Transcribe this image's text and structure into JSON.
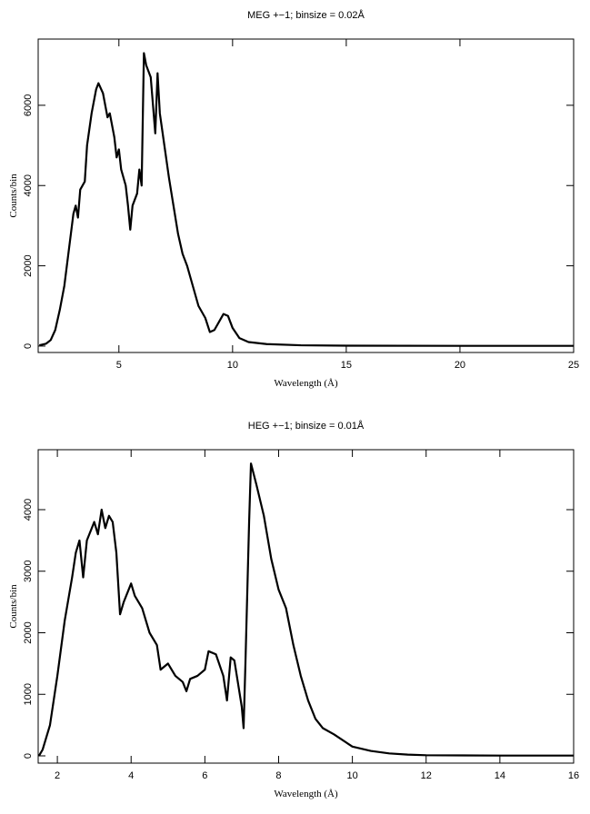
{
  "chart_data": [
    {
      "type": "line",
      "title": "MEG +−1; binsize = 0.02Å",
      "x_label": "Wavelength (Å)",
      "y_label": "Counts/bin",
      "color": "#000000",
      "x": [
        1.5,
        1.8,
        2.0,
        2.2,
        2.4,
        2.6,
        2.8,
        3.0,
        3.1,
        3.2,
        3.3,
        3.5,
        3.6,
        3.8,
        4.0,
        4.1,
        4.3,
        4.5,
        4.6,
        4.8,
        4.9,
        5.0,
        5.1,
        5.3,
        5.4,
        5.5,
        5.6,
        5.8,
        5.9,
        6.0,
        6.1,
        6.2,
        6.4,
        6.6,
        6.7,
        6.8,
        7.0,
        7.2,
        7.4,
        7.6,
        7.8,
        8.0,
        8.2,
        8.5,
        8.8,
        9.0,
        9.2,
        9.4,
        9.6,
        9.8,
        10.0,
        10.3,
        10.7,
        11.5,
        13,
        15,
        20,
        25
      ],
      "values": [
        20,
        60,
        150,
        400,
        900,
        1500,
        2400,
        3300,
        3500,
        3200,
        3900,
        4100,
        5000,
        5800,
        6400,
        6550,
        6300,
        5700,
        5800,
        5200,
        4700,
        4900,
        4400,
        4000,
        3500,
        2900,
        3500,
        3800,
        4400,
        4000,
        7300,
        7000,
        6700,
        5300,
        6800,
        5800,
        5000,
        4200,
        3500,
        2800,
        2300,
        2000,
        1600,
        1000,
        700,
        350,
        400,
        600,
        800,
        750,
        450,
        200,
        100,
        50,
        20,
        10,
        5,
        5
      ],
      "xlim": [
        1.45,
        25
      ],
      "ylim": [
        -160,
        7650
      ],
      "xticks": [
        5,
        10,
        15,
        20,
        25
      ],
      "yticks": [
        0,
        2000,
        4000,
        6000
      ]
    },
    {
      "type": "line",
      "title": "HEG +−1; binsize = 0.01Å",
      "x_label": "Wavelength (Å)",
      "y_label": "Counts/bin",
      "color": "#000000",
      "x": [
        1.5,
        1.6,
        1.8,
        2.0,
        2.2,
        2.4,
        2.5,
        2.6,
        2.7,
        2.8,
        3.0,
        3.1,
        3.2,
        3.3,
        3.4,
        3.5,
        3.6,
        3.7,
        3.8,
        4.0,
        4.1,
        4.3,
        4.5,
        4.7,
        4.8,
        5.0,
        5.2,
        5.4,
        5.5,
        5.6,
        5.8,
        6.0,
        6.1,
        6.3,
        6.5,
        6.6,
        6.7,
        6.8,
        7.0,
        7.05,
        7.1,
        7.2,
        7.25,
        7.4,
        7.6,
        7.8,
        8.0,
        8.2,
        8.4,
        8.6,
        8.8,
        9.0,
        9.2,
        9.5,
        10.0,
        10.5,
        11.0,
        11.5,
        12,
        14,
        16
      ],
      "values": [
        0,
        100,
        500,
        1300,
        2200,
        2900,
        3300,
        3500,
        2900,
        3500,
        3800,
        3600,
        4000,
        3700,
        3900,
        3800,
        3300,
        2300,
        2500,
        2800,
        2600,
        2400,
        2000,
        1800,
        1400,
        1500,
        1300,
        1200,
        1050,
        1250,
        1300,
        1400,
        1700,
        1650,
        1300,
        900,
        1600,
        1550,
        800,
        450,
        1500,
        3800,
        4750,
        4400,
        3900,
        3200,
        2700,
        2400,
        1800,
        1300,
        900,
        600,
        450,
        350,
        150,
        80,
        40,
        20,
        10,
        5,
        5
      ],
      "xlim": [
        1.48,
        16
      ],
      "ylim": [
        -118,
        4974
      ],
      "xticks": [
        2,
        4,
        6,
        8,
        10,
        12,
        14,
        16
      ],
      "yticks": [
        0,
        1000,
        2000,
        3000,
        4000
      ]
    }
  ]
}
